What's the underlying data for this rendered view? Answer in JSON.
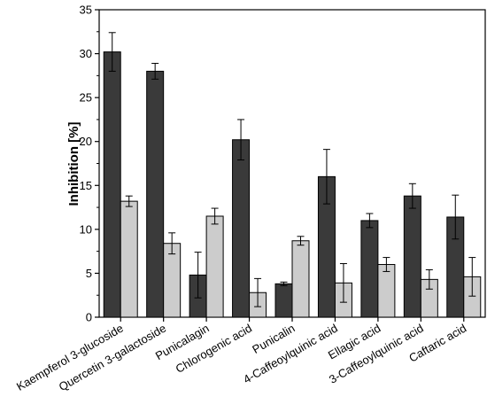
{
  "chart_data": {
    "type": "bar",
    "ylabel": "Inhibition [%]",
    "xlabel": "",
    "ylim": [
      0,
      35
    ],
    "yticks": [
      0,
      5,
      10,
      15,
      20,
      25,
      30,
      35
    ],
    "categories": [
      "Kaempferol 3-glucoside",
      "Quercetin 3-galactoside",
      "Punicalagin",
      "Chlorogenic acid",
      "Punicalin",
      "4-Caffeoylquinic acid",
      "Ellagic acid",
      "3-Caffeoylquinic acid",
      "Caftaric acid"
    ],
    "series": [
      {
        "color": "#3a3a3a",
        "values": [
          30.2,
          28.0,
          4.8,
          20.2,
          3.8,
          16.0,
          11.0,
          13.8,
          11.4
        ],
        "errors": [
          2.2,
          0.9,
          2.6,
          2.3,
          0.2,
          3.1,
          0.8,
          1.4,
          2.5
        ]
      },
      {
        "color": "#cccccc",
        "values": [
          13.2,
          8.4,
          11.5,
          2.8,
          8.7,
          3.9,
          6.0,
          4.3,
          4.6
        ],
        "errors": [
          0.6,
          1.2,
          0.9,
          1.6,
          0.5,
          2.2,
          0.8,
          1.1,
          2.2
        ]
      }
    ],
    "legend": "none",
    "grid": false
  }
}
